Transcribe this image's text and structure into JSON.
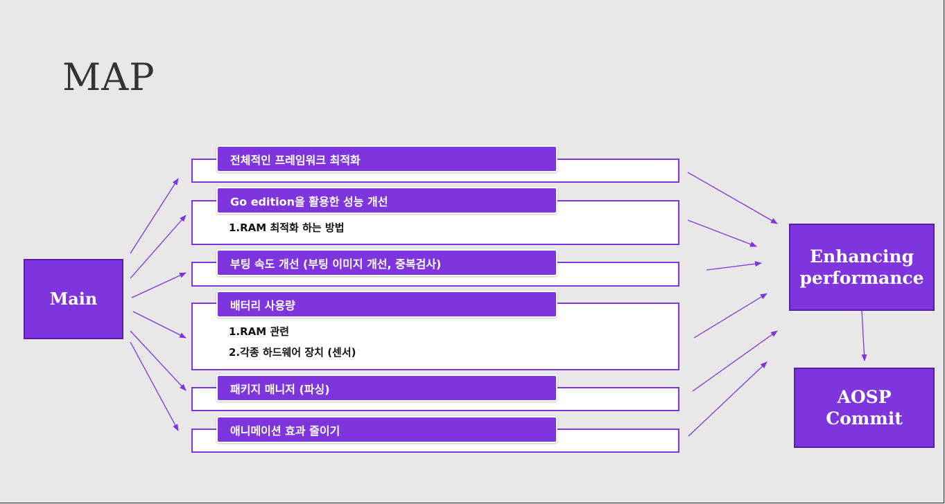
{
  "title": "MAP",
  "main_node": "Main",
  "enhancing_node": "Enhancing performance",
  "aosp_node": "AOSP Commit",
  "sections": [
    {
      "header": "전체적인 프레임워크 최적화",
      "items": []
    },
    {
      "header": "Go edition을 활용한 성능 개선",
      "items": [
        "1.RAM 최적화 하는 방법"
      ]
    },
    {
      "header": "부팅 속도 개선 (부팅 이미지 개선, 중복검사)",
      "items": []
    },
    {
      "header": "배터리 사용량",
      "items": [
        "1.RAM 관련",
        "2.각종 하드웨어 장치 (센서)"
      ]
    },
    {
      "header": "패키지 매니저 (파싱)",
      "items": []
    },
    {
      "header": "애니메이션 효과 줄이기",
      "items": []
    }
  ],
  "colors": {
    "accent": "#7e35dd",
    "background": "#e8e8e8"
  }
}
